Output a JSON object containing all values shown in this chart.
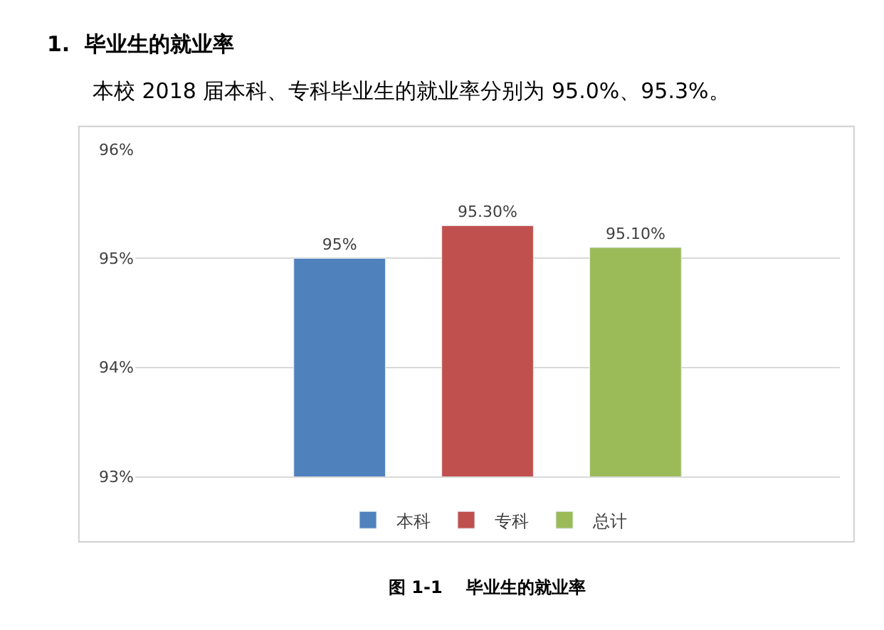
{
  "chart_data": {
    "type": "bar",
    "title": "1.  毕业生的就业率",
    "subtitle": "本校 2018 届本科、专科毕业生的就业率分别为 95.0%、95.3%。",
    "annotations": [
      "图 1-1    毕业生的就业率"
    ],
    "categories": [
      null
    ],
    "series": [
      {
        "name": "本科",
        "color": "#4f81bd",
        "values": [
          95
        ],
        "value_labels": [
          "95%"
        ]
      },
      {
        "name": "专科",
        "color": "#c0504d",
        "values": [
          95.3
        ],
        "value_labels": [
          "95.30%"
        ]
      },
      {
        "name": "总计",
        "color": "#9bbb59",
        "values": [
          95.1
        ],
        "value_labels": [
          "95.10%"
        ]
      }
    ],
    "ylim": [
      93,
      96
    ],
    "yticks": [
      {
        "value": 93,
        "label": "93%"
      },
      {
        "value": 94,
        "label": "94%"
      },
      {
        "value": 95,
        "label": "95%"
      },
      {
        "value": 96,
        "label": "96%"
      }
    ],
    "grid": "y",
    "legend": "bottom",
    "tick_labels": "y"
  }
}
